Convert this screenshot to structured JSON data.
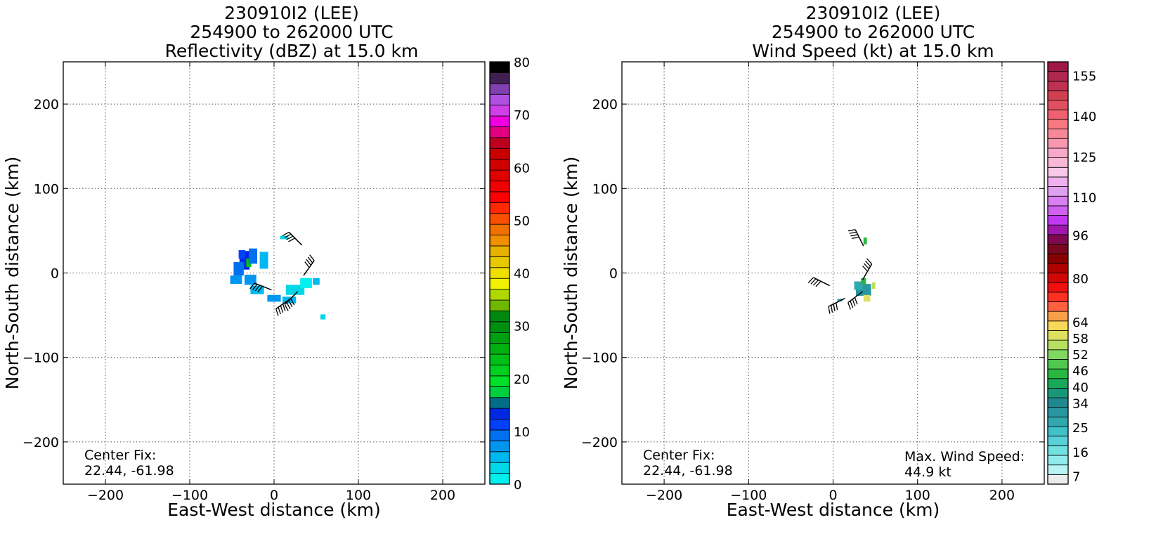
{
  "chart_data": [
    {
      "id": "left",
      "type": "heatmap",
      "title_lines": [
        "230910I2 (LEE)",
        "254900 to 262000 UTC",
        "Reflectivity (dBZ) at 15.0 km"
      ],
      "xlabel": "East-West distance (km)",
      "ylabel": "North-South distance (km)",
      "xlim": [
        -250,
        250
      ],
      "ylim": [
        -250,
        250
      ],
      "xticks": [
        -200,
        -100,
        0,
        100,
        200
      ],
      "yticks": [
        -200,
        -100,
        0,
        100,
        200
      ],
      "xtick_labels": [
        "−200",
        "−100",
        "0",
        "100",
        "200"
      ],
      "ytick_labels": [
        "−200",
        "−100",
        "0",
        "100",
        "200"
      ],
      "grid": true,
      "annotation_left": [
        "Center Fix:",
        "22.44, -61.98"
      ],
      "annotation_right": [],
      "colorbar": {
        "min": 0,
        "max": 80,
        "colors": [
          "#00f0f0",
          "#00d8e8",
          "#00b8f0",
          "#0096f0",
          "#0070f0",
          "#0040f8",
          "#0028e0",
          "#006e88",
          "#00d040",
          "#00e028",
          "#00d020",
          "#00c018",
          "#00b010",
          "#00a010",
          "#009010",
          "#008810",
          "#70b800",
          "#b0d800",
          "#f0f000",
          "#f0e000",
          "#e8c800",
          "#e8b000",
          "#f09000",
          "#f07000",
          "#f85000",
          "#ff2800",
          "#ff0000",
          "#f00000",
          "#e00000",
          "#d00000",
          "#c80000",
          "#c00020",
          "#e00080",
          "#f000e0",
          "#d040e8",
          "#b050e0",
          "#8040b0",
          "#402050",
          "#000000"
        ],
        "tick_values": [
          0,
          10,
          20,
          30,
          40,
          50,
          60,
          70,
          80
        ],
        "tick_labels": [
          "0",
          "10",
          "20",
          "30",
          "40",
          "50",
          "60",
          "70",
          "80"
        ]
      },
      "cells": [
        {
          "x": -35,
          "y": 15,
          "w": 12,
          "h": 22,
          "color": "#0028e0"
        },
        {
          "x": -30,
          "y": 12,
          "w": 6,
          "h": 10,
          "color": "#00c018"
        },
        {
          "x": -38,
          "y": 22,
          "w": 8,
          "h": 10,
          "color": "#0040f8"
        },
        {
          "x": -25,
          "y": 20,
          "w": 10,
          "h": 18,
          "color": "#0070f0"
        },
        {
          "x": -42,
          "y": 5,
          "w": 12,
          "h": 16,
          "color": "#0070f0"
        },
        {
          "x": -45,
          "y": -8,
          "w": 14,
          "h": 10,
          "color": "#0096f0"
        },
        {
          "x": -28,
          "y": -8,
          "w": 14,
          "h": 12,
          "color": "#0096f0"
        },
        {
          "x": -12,
          "y": 15,
          "w": 10,
          "h": 20,
          "color": "#00b8f0"
        },
        {
          "x": -20,
          "y": -20,
          "w": 16,
          "h": 10,
          "color": "#00b8f0"
        },
        {
          "x": 0,
          "y": -30,
          "w": 16,
          "h": 8,
          "color": "#0096f0"
        },
        {
          "x": 18,
          "y": -32,
          "w": 16,
          "h": 8,
          "color": "#00b8f0"
        },
        {
          "x": 25,
          "y": -20,
          "w": 22,
          "h": 12,
          "color": "#00d8e8"
        },
        {
          "x": 38,
          "y": -12,
          "w": 14,
          "h": 12,
          "color": "#00f0f0"
        },
        {
          "x": 50,
          "y": -10,
          "w": 8,
          "h": 8,
          "color": "#00b8f0"
        },
        {
          "x": 12,
          "y": 42,
          "w": 10,
          "h": 4,
          "color": "#00d8e8"
        },
        {
          "x": 58,
          "y": -52,
          "w": 6,
          "h": 6,
          "color": "#00d8e8"
        }
      ],
      "barbs": [
        {
          "x": 33,
          "y": 33,
          "u": 1,
          "v": -1
        },
        {
          "x": -3,
          "y": -20,
          "u": 1,
          "v": -0.4
        },
        {
          "x": 20,
          "y": -30,
          "u": 1,
          "v": 0.7
        },
        {
          "x": 35,
          "y": -3,
          "u": -1,
          "v": -1.4
        },
        {
          "x": 28,
          "y": -22,
          "u": 0.8,
          "v": 0.8
        }
      ]
    },
    {
      "id": "right",
      "type": "heatmap",
      "title_lines": [
        "230910I2 (LEE)",
        "254900 to 262000 UTC",
        "Wind Speed (kt) at 15.0 km"
      ],
      "xlabel": "East-West distance (km)",
      "ylabel": "North-South distance (km)",
      "xlim": [
        -250,
        250
      ],
      "ylim": [
        -250,
        250
      ],
      "xticks": [
        -200,
        -100,
        0,
        100,
        200
      ],
      "yticks": [
        -200,
        -100,
        0,
        100,
        200
      ],
      "xtick_labels": [
        "−200",
        "−100",
        "0",
        "100",
        "200"
      ],
      "ytick_labels": [
        "−200",
        "−100",
        "0",
        "100",
        "200"
      ],
      "grid": true,
      "annotation_left": [
        "Center Fix:",
        "22.44, -61.98"
      ],
      "annotation_right": [
        "Max. Wind Speed:",
        "44.9 kt"
      ],
      "colorbar": {
        "min": 4,
        "max": 160,
        "colors": [
          "#ececec",
          "#b8f4f4",
          "#90ecec",
          "#70e0e0",
          "#58d0d8",
          "#40c0c8",
          "#30a8b0",
          "#2898a0",
          "#208890",
          "#189878",
          "#18a858",
          "#28b840",
          "#50c850",
          "#80d860",
          "#b8e060",
          "#e0e060",
          "#f8d858",
          "#f8a048",
          "#ff6040",
          "#ff3020",
          "#f01010",
          "#d00808",
          "#b00000",
          "#880000",
          "#780820",
          "#800850",
          "#a018b0",
          "#c038f0",
          "#d060f0",
          "#d880f0",
          "#e0a0f0",
          "#f0b0f0",
          "#f8c8e8",
          "#f8b8d8",
          "#f8a8c8",
          "#f898b0",
          "#f88898",
          "#f87880",
          "#f06070",
          "#e05060",
          "#d04050",
          "#c03050",
          "#b02850",
          "#a01848"
        ],
        "tick_values": [
          7,
          16,
          25,
          34,
          40,
          46,
          52,
          58,
          64,
          80,
          96,
          110,
          125,
          140,
          155
        ],
        "tick_labels": [
          "7",
          "16",
          "25",
          "34",
          "40",
          "46",
          "52",
          "58",
          "64",
          "80",
          "96",
          "110",
          "125",
          "140",
          "155"
        ]
      },
      "cells": [
        {
          "x": 36,
          "y": -20,
          "w": 18,
          "h": 14,
          "color": "#2898a0"
        },
        {
          "x": 30,
          "y": -15,
          "w": 10,
          "h": 10,
          "color": "#30a8b0"
        },
        {
          "x": 40,
          "y": -30,
          "w": 8,
          "h": 8,
          "color": "#e0e060"
        },
        {
          "x": 48,
          "y": -15,
          "w": 4,
          "h": 8,
          "color": "#b8e060"
        },
        {
          "x": 36,
          "y": -10,
          "w": 6,
          "h": 8,
          "color": "#28b840"
        },
        {
          "x": 38,
          "y": 38,
          "w": 4,
          "h": 8,
          "color": "#28b840"
        },
        {
          "x": 8,
          "y": -32,
          "w": 6,
          "h": 3,
          "color": "#30a8b0"
        }
      ],
      "barbs": [
        {
          "x": 36,
          "y": 32,
          "u": 0.6,
          "v": -1.2
        },
        {
          "x": -4,
          "y": -15,
          "u": 1,
          "v": -0.5
        },
        {
          "x": 14,
          "y": -30,
          "u": 1,
          "v": 0.5
        },
        {
          "x": 35,
          "y": -8,
          "u": -0.7,
          "v": -1.2
        },
        {
          "x": 35,
          "y": -22,
          "u": 0.8,
          "v": 0.6
        }
      ]
    }
  ]
}
